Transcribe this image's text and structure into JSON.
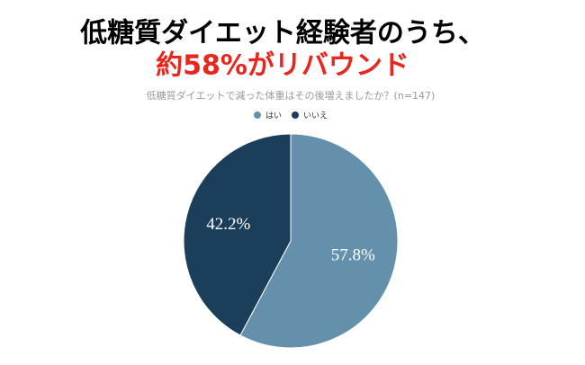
{
  "headline": [
    "低糖質ダイエット経験者のうち、",
    "約58%がリバウンド"
  ],
  "chart_data": {
    "type": "pie",
    "title": "低糖質ダイエットで減った体重はその後増えましたか？(n=147)",
    "categories": [
      "はい",
      "いいえ"
    ],
    "values": [
      57.8,
      42.2
    ],
    "value_labels": [
      "57.8%",
      "42.2%"
    ],
    "colors": [
      "#6490ac",
      "#1b3f5a"
    ],
    "legend": "top"
  }
}
